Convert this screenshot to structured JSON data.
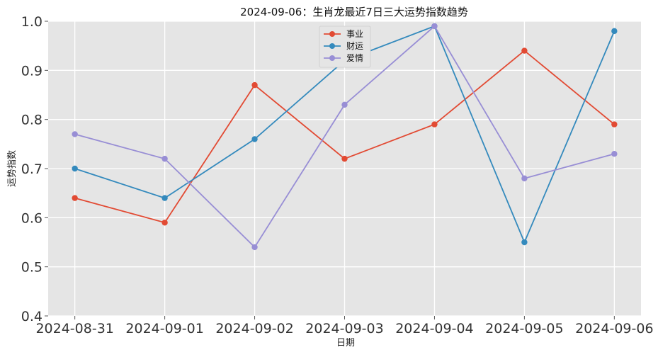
{
  "chart_data": {
    "type": "line",
    "title": "2024-09-06：生肖龙最近7日三大运势指数趋势",
    "xlabel": "日期",
    "ylabel": "运势指数",
    "categories": [
      "2024-08-31",
      "2024-09-01",
      "2024-09-02",
      "2024-09-03",
      "2024-09-04",
      "2024-09-05",
      "2024-09-06"
    ],
    "ylim": [
      0.4,
      1.0
    ],
    "yticks": [
      "0.4",
      "0.5",
      "0.6",
      "0.7",
      "0.8",
      "0.9",
      "1.0"
    ],
    "grid": true,
    "legend_position": "top-center",
    "series": [
      {
        "name": "事业",
        "color": "#E24A33",
        "values": [
          0.64,
          0.59,
          0.87,
          0.72,
          0.79,
          0.94,
          0.79
        ]
      },
      {
        "name": "财运",
        "color": "#348ABD",
        "values": [
          0.7,
          0.64,
          0.76,
          0.92,
          0.99,
          0.55,
          0.98
        ]
      },
      {
        "name": "爱情",
        "color": "#988ED5",
        "values": [
          0.77,
          0.72,
          0.54,
          0.83,
          0.99,
          0.68,
          0.73
        ]
      }
    ]
  }
}
